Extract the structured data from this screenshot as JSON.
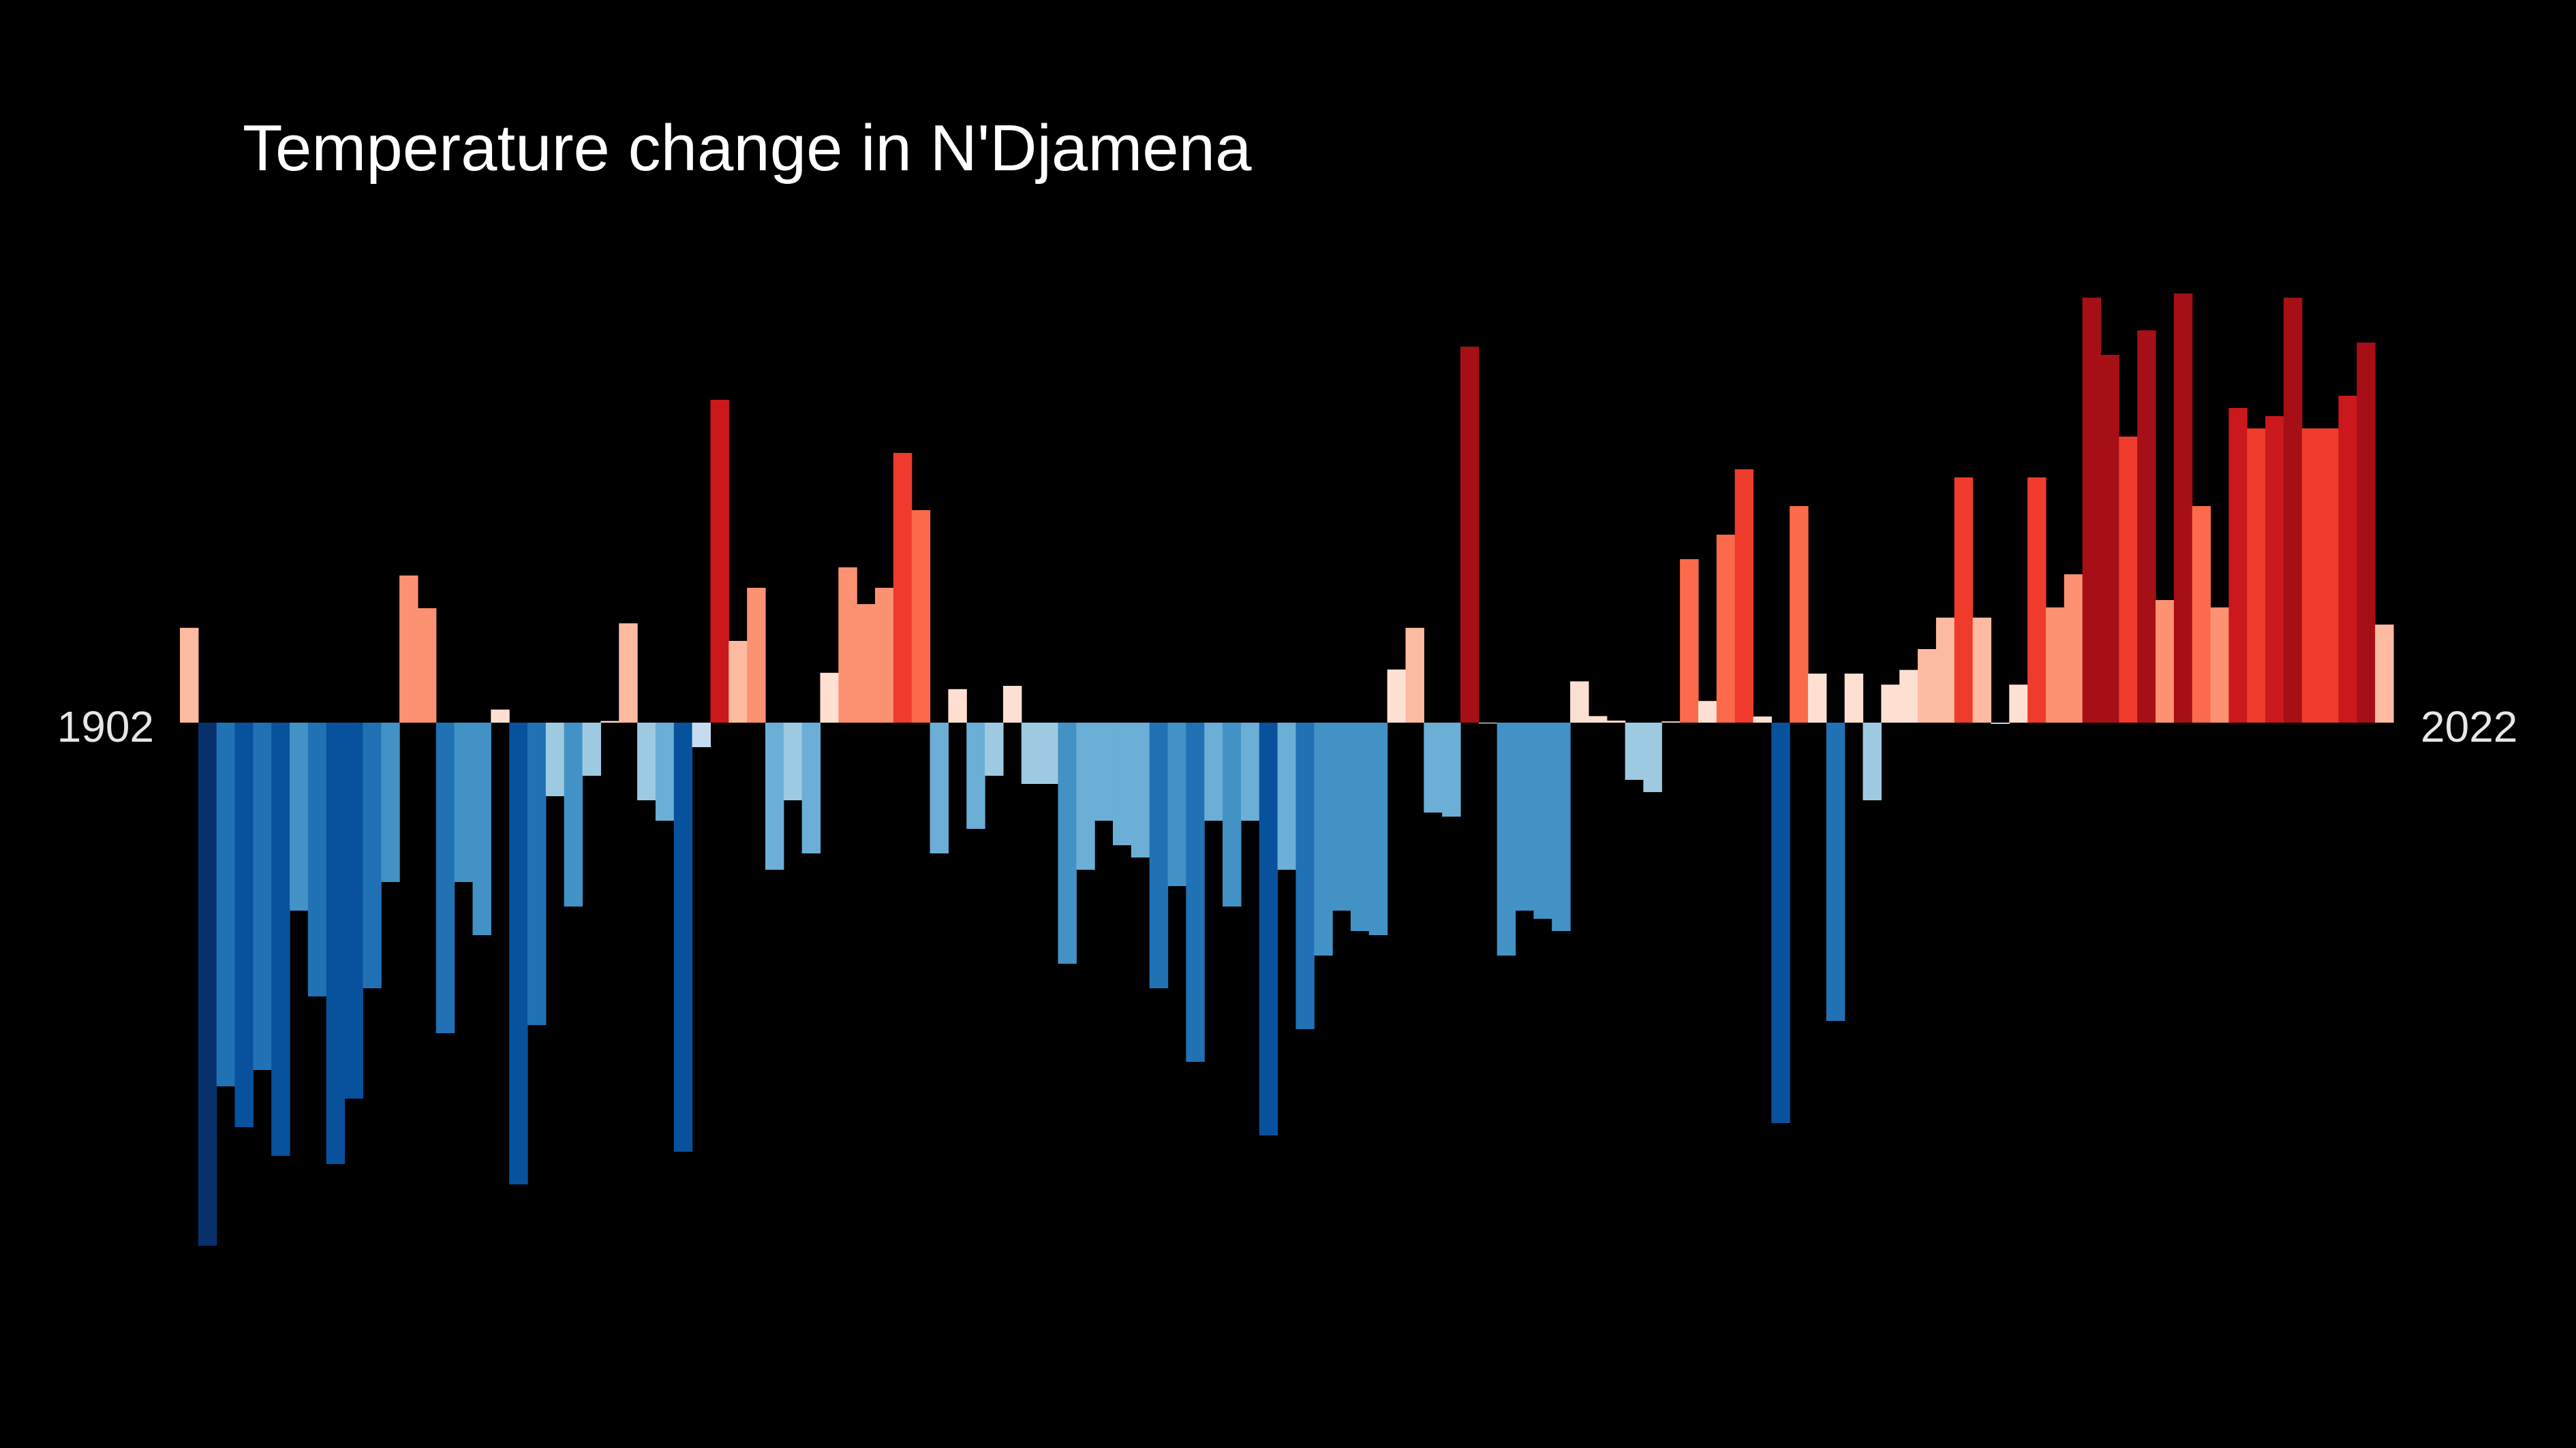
{
  "chart_data": {
    "type": "bar",
    "title": "Temperature change in N'Djamena",
    "start_label": "1902",
    "end_label": "2022",
    "xlabel": "",
    "ylabel": "",
    "grid": false,
    "legend": "none",
    "ylim": [
      -1.4,
      1.2
    ],
    "categories": [
      1902,
      1903,
      1904,
      1905,
      1906,
      1907,
      1908,
      1909,
      1910,
      1911,
      1912,
      1913,
      1914,
      1915,
      1916,
      1917,
      1918,
      1919,
      1920,
      1921,
      1922,
      1923,
      1924,
      1925,
      1926,
      1927,
      1928,
      1929,
      1930,
      1931,
      1932,
      1933,
      1934,
      1935,
      1936,
      1937,
      1938,
      1939,
      1940,
      1941,
      1942,
      1943,
      1944,
      1945,
      1946,
      1947,
      1948,
      1949,
      1950,
      1951,
      1952,
      1953,
      1954,
      1955,
      1956,
      1957,
      1958,
      1959,
      1960,
      1961,
      1962,
      1963,
      1964,
      1965,
      1966,
      1967,
      1968,
      1969,
      1970,
      1971,
      1972,
      1973,
      1974,
      1975,
      1976,
      1977,
      1978,
      1979,
      1980,
      1981,
      1982,
      1983,
      1984,
      1985,
      1986,
      1987,
      1988,
      1989,
      1990,
      1991,
      1992,
      1993,
      1994,
      1995,
      1996,
      1997,
      1998,
      1999,
      2000,
      2001,
      2002,
      2003,
      2004,
      2005,
      2006,
      2007,
      2008,
      2009,
      2010,
      2011,
      2012,
      2013,
      2014,
      2015,
      2016,
      2017,
      2018,
      2019,
      2020,
      2021,
      2022
    ],
    "values": [
      0.232,
      -1.28,
      -0.89,
      -0.99,
      -0.85,
      -1.06,
      -0.46,
      -0.67,
      -1.08,
      -0.92,
      -0.65,
      -0.39,
      0.36,
      0.28,
      -0.76,
      -0.39,
      -0.52,
      0.032,
      -1.13,
      -0.74,
      -0.18,
      -0.45,
      -0.13,
      0.004,
      0.243,
      -0.19,
      -0.24,
      -1.05,
      -0.06,
      0.79,
      0.2,
      0.33,
      -0.36,
      -0.19,
      -0.32,
      0.122,
      0.38,
      0.29,
      0.33,
      0.66,
      0.52,
      -0.32,
      0.082,
      -0.26,
      -0.13,
      0.09,
      -0.15,
      -0.15,
      -0.59,
      -0.36,
      -0.24,
      -0.3,
      -0.33,
      -0.65,
      -0.4,
      -0.83,
      -0.24,
      -0.45,
      -0.24,
      -1.01,
      -0.36,
      -0.75,
      -0.57,
      -0.46,
      -0.51,
      -0.52,
      0.13,
      0.232,
      -0.22,
      -0.23,
      0.92,
      -0.002,
      -0.57,
      -0.46,
      -0.48,
      -0.51,
      0.101,
      0.016,
      0.005,
      -0.14,
      -0.17,
      0.003,
      0.4,
      0.053,
      0.46,
      0.62,
      0.015,
      -0.98,
      0.53,
      0.12,
      -0.73,
      0.12,
      -0.19,
      0.093,
      0.129,
      0.18,
      0.257,
      0.6,
      0.257,
      -0.003,
      0.093,
      0.6,
      0.282,
      0.363,
      1.04,
      0.9,
      0.7,
      0.96,
      0.3,
      1.05,
      0.53,
      0.282,
      0.77,
      0.72,
      0.75,
      1.04,
      0.72,
      0.72,
      0.8,
      0.93,
      0.24
    ]
  }
}
